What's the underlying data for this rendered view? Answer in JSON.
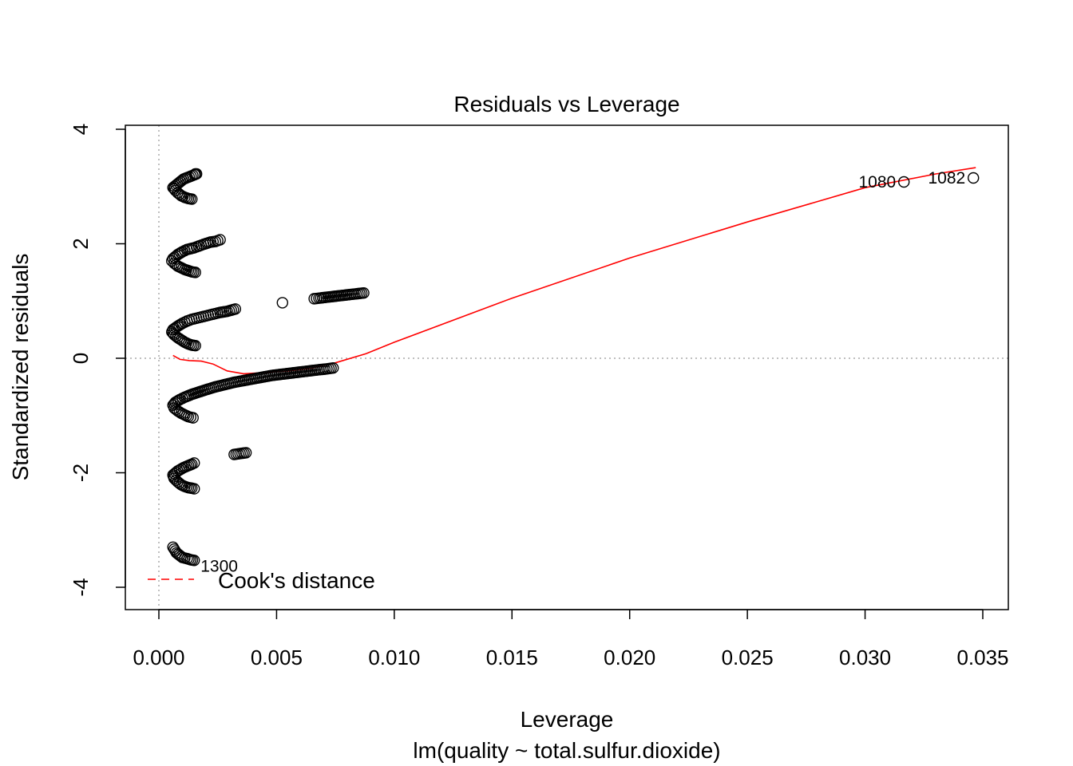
{
  "chart_data": {
    "type": "scatter",
    "title": "Residuals vs Leverage",
    "xlabel": "Leverage",
    "subtitle": "lm(quality ~ total.sulfur.dioxide)",
    "ylabel": "Standardized residuals",
    "xlim": [
      -0.0007,
      0.0363
    ],
    "ylim": [
      -4.2,
      4.2
    ],
    "x_ticks": [
      0.0,
      0.005,
      0.01,
      0.015,
      0.02,
      0.025,
      0.03,
      0.035
    ],
    "x_tick_labels": [
      "0.000",
      "0.005",
      "0.010",
      "0.015",
      "0.020",
      "0.025",
      "0.030",
      "0.035"
    ],
    "y_ticks": [
      -4,
      -2,
      0,
      2,
      4
    ],
    "y_tick_labels": [
      "-4",
      "-2",
      "0",
      "2",
      "4"
    ],
    "reference_lines": {
      "x": 0,
      "y": 0,
      "style": "dotted",
      "color": "#aaaaaa"
    },
    "point_colors": {
      "stroke": "#000000",
      "fill": "none"
    },
    "point_groups": [
      {
        "points": [
          [
            0.00155,
            3.22
          ],
          [
            0.0016,
            3.22
          ],
          [
            0.00105,
            3.13
          ],
          [
            0.0006,
            2.98
          ],
          [
            0.00065,
            2.96
          ],
          [
            0.0007,
            2.93
          ],
          [
            0.0008,
            2.89
          ],
          [
            0.00095,
            2.84
          ],
          [
            0.0011,
            2.81
          ],
          [
            0.00125,
            2.79
          ],
          [
            0.0014,
            2.78
          ]
        ]
      },
      {
        "points": [
          [
            0.0026,
            2.07
          ],
          [
            0.0024,
            2.04
          ],
          [
            0.0022,
            2.03
          ],
          [
            0.0019,
            1.99
          ],
          [
            0.0017,
            1.96
          ],
          [
            0.0015,
            1.93
          ],
          [
            0.0012,
            1.9
          ],
          [
            0.001,
            1.86
          ],
          [
            0.0008,
            1.81
          ],
          [
            0.0006,
            1.74
          ],
          [
            0.00055,
            1.7
          ],
          [
            0.00065,
            1.66
          ],
          [
            0.0008,
            1.61
          ],
          [
            0.00095,
            1.58
          ],
          [
            0.0011,
            1.55
          ],
          [
            0.00125,
            1.53
          ],
          [
            0.0014,
            1.51
          ],
          [
            0.00155,
            1.5
          ]
        ]
      },
      {
        "points": [
          [
            0.0087,
            1.14
          ],
          [
            0.00805,
            1.11
          ],
          [
            0.0068,
            1.05
          ],
          [
            0.0066,
            1.04
          ],
          [
            0.00525,
            0.97
          ],
          [
            0.00325,
            0.86
          ],
          [
            0.0029,
            0.82
          ],
          [
            0.0026,
            0.8
          ],
          [
            0.0024,
            0.78
          ],
          [
            0.0022,
            0.76
          ],
          [
            0.002,
            0.74
          ],
          [
            0.0018,
            0.72
          ],
          [
            0.0016,
            0.7
          ],
          [
            0.0014,
            0.68
          ],
          [
            0.0012,
            0.65
          ],
          [
            0.001,
            0.61
          ],
          [
            0.0008,
            0.56
          ],
          [
            0.0006,
            0.5
          ],
          [
            0.00055,
            0.46
          ],
          [
            0.00065,
            0.41
          ],
          [
            0.0008,
            0.36
          ],
          [
            0.00095,
            0.32
          ],
          [
            0.0011,
            0.28
          ],
          [
            0.00125,
            0.25
          ],
          [
            0.0014,
            0.23
          ],
          [
            0.00155,
            0.22
          ]
        ]
      },
      {
        "points": [
          [
            0.0074,
            -0.17
          ],
          [
            0.00705,
            -0.19
          ],
          [
            0.0068,
            -0.2
          ],
          [
            0.0064,
            -0.22
          ],
          [
            0.006,
            -0.24
          ],
          [
            0.0056,
            -0.26
          ],
          [
            0.0052,
            -0.28
          ],
          [
            0.0048,
            -0.3
          ],
          [
            0.0044,
            -0.33
          ],
          [
            0.004,
            -0.36
          ],
          [
            0.0036,
            -0.39
          ],
          [
            0.0032,
            -0.42
          ],
          [
            0.0028,
            -0.46
          ],
          [
            0.0024,
            -0.5
          ],
          [
            0.002,
            -0.55
          ],
          [
            0.0017,
            -0.59
          ],
          [
            0.0014,
            -0.63
          ],
          [
            0.0011,
            -0.68
          ],
          [
            0.0009,
            -0.72
          ],
          [
            0.0007,
            -0.77
          ],
          [
            0.0006,
            -0.82
          ],
          [
            0.00065,
            -0.87
          ],
          [
            0.0008,
            -0.92
          ],
          [
            0.00095,
            -0.96
          ],
          [
            0.0011,
            -0.99
          ],
          [
            0.00125,
            -1.02
          ],
          [
            0.00145,
            -1.04
          ]
        ]
      },
      {
        "points": [
          [
            0.0037,
            -1.65
          ],
          [
            0.0032,
            -1.68
          ],
          [
            0.0015,
            -1.83
          ],
          [
            0.0014,
            -1.85
          ],
          [
            0.00105,
            -1.91
          ],
          [
            0.0008,
            -1.97
          ],
          [
            0.0006,
            -2.04
          ],
          [
            0.00065,
            -2.1
          ],
          [
            0.0008,
            -2.16
          ],
          [
            0.00095,
            -2.21
          ],
          [
            0.0011,
            -2.24
          ],
          [
            0.00125,
            -2.26
          ],
          [
            0.0014,
            -2.27
          ],
          [
            0.0015,
            -2.28
          ]
        ]
      },
      {
        "points": [
          [
            0.0006,
            -3.3
          ],
          [
            0.00075,
            -3.4
          ],
          [
            0.001,
            -3.48
          ],
          [
            0.0012,
            -3.5
          ],
          [
            0.00135,
            -3.52
          ],
          [
            0.0015,
            -3.53
          ]
        ]
      },
      {
        "points": [
          [
            0.03165,
            3.08
          ],
          [
            0.0346,
            3.15
          ]
        ]
      }
    ],
    "labeled_points": [
      {
        "label": "1080",
        "x": 0.03165,
        "y": 3.08,
        "side": "left"
      },
      {
        "label": "1082",
        "x": 0.0346,
        "y": 3.15,
        "side": "left"
      },
      {
        "label": "1300",
        "x": 0.0015,
        "y": -3.53,
        "side": "right"
      }
    ],
    "smoother": {
      "color": "#ff0000",
      "points": [
        [
          0.0006,
          0.05
        ],
        [
          0.0009,
          -0.02
        ],
        [
          0.0013,
          -0.04
        ],
        [
          0.0018,
          -0.05
        ],
        [
          0.0023,
          -0.1
        ],
        [
          0.0029,
          -0.22
        ],
        [
          0.0036,
          -0.27
        ],
        [
          0.0045,
          -0.25
        ],
        [
          0.0055,
          -0.22
        ],
        [
          0.0065,
          -0.17
        ],
        [
          0.0075,
          -0.08
        ],
        [
          0.0088,
          0.08
        ],
        [
          0.01,
          0.28
        ],
        [
          0.015,
          1.05
        ],
        [
          0.02,
          1.75
        ],
        [
          0.025,
          2.38
        ],
        [
          0.03,
          2.98
        ],
        [
          0.033,
          3.22
        ],
        [
          0.0347,
          3.33
        ]
      ]
    },
    "legend": {
      "position": "bottom-left",
      "entries": [
        {
          "label": "Cook's distance",
          "color": "#ff0000",
          "style": "dashed"
        }
      ]
    }
  }
}
